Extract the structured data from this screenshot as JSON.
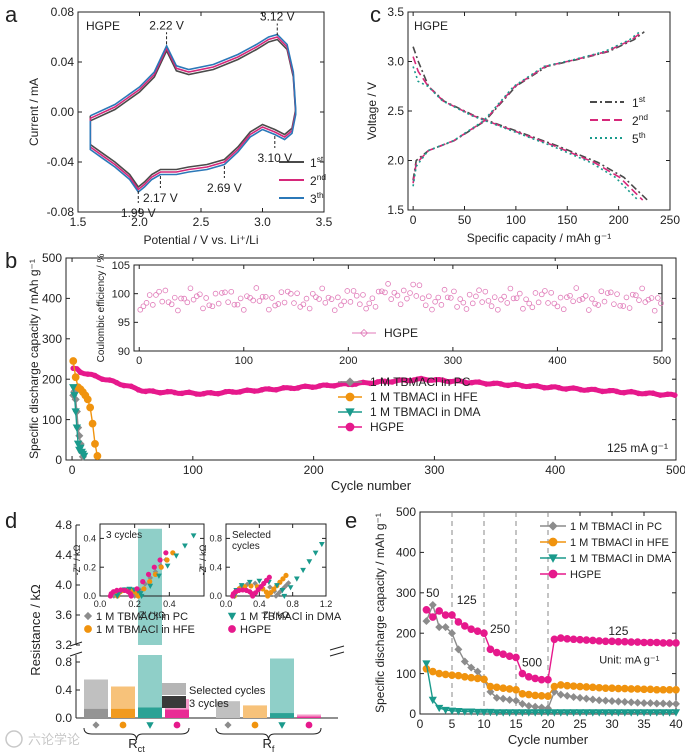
{
  "panels": {
    "a": {
      "letter": "a",
      "label": "HGPE",
      "xlabel": "Potential / V vs. Li⁺/Li",
      "ylabel": "Current / mA",
      "xlim": [
        1.5,
        3.5
      ],
      "ylim": [
        -0.08,
        0.08
      ],
      "xticks": [
        "1.5",
        "2.0",
        "2.5",
        "3.0",
        "3.5"
      ],
      "xtick_vals": [
        1.5,
        2.0,
        2.5,
        3.0,
        3.5
      ],
      "yticks": [
        "-0.08",
        "-0.04",
        "0.00",
        "0.04",
        "0.08"
      ],
      "ytick_vals": [
        -0.08,
        -0.04,
        0,
        0.04,
        0.08
      ],
      "peaks": [
        {
          "label": "2.22 V",
          "x": 2.22,
          "y": 0.051,
          "pos": "above"
        },
        {
          "label": "3.12 V",
          "x": 3.12,
          "y": 0.058,
          "pos": "above"
        },
        {
          "label": "1.99 V",
          "x": 1.99,
          "y": -0.06,
          "pos": "below"
        },
        {
          "label": "2.17 V",
          "x": 2.17,
          "y": -0.048,
          "pos": "below"
        },
        {
          "label": "2.69 V",
          "x": 2.69,
          "y": -0.04,
          "pos": "below"
        },
        {
          "label": "3.10 V",
          "x": 3.1,
          "y": -0.016,
          "pos": "below"
        }
      ],
      "series": [
        {
          "name": "1st",
          "base": "1",
          "sup": "st",
          "color": "#4a4a4a"
        },
        {
          "name": "2nd",
          "base": "2",
          "sup": "nd",
          "color": "#d6287a"
        },
        {
          "name": "3th",
          "base": "3",
          "sup": "th",
          "color": "#2b78b8"
        }
      ]
    },
    "c": {
      "letter": "c",
      "label": "HGPE",
      "xlabel": "Specific capacity / mAh g⁻¹",
      "ylabel": "Voltage / V",
      "xlim": [
        -5,
        250
      ],
      "ylim": [
        1.5,
        3.5
      ],
      "xticks": [
        "0",
        "50",
        "100",
        "150",
        "200",
        "250"
      ],
      "xtick_vals": [
        0,
        50,
        100,
        150,
        200,
        250
      ],
      "yticks": [
        "1.5",
        "2.0",
        "2.5",
        "3.0",
        "3.5"
      ],
      "ytick_vals": [
        1.5,
        2.0,
        2.5,
        3.0,
        3.5
      ],
      "series": [
        {
          "name": "1st",
          "base": "1",
          "sup": "st",
          "color": "#4a4a4a",
          "dash": "7,3,2,3"
        },
        {
          "name": "2nd",
          "base": "2",
          "sup": "nd",
          "color": "#d6287a",
          "dash": "8,4"
        },
        {
          "name": "5th",
          "base": "5",
          "sup": "th",
          "color": "#1a9a8c",
          "dash": "2,3"
        }
      ]
    },
    "b": {
      "letter": "b",
      "xlabel": "Cycle number",
      "ylabel": "Specific discharge capacity / mAh g⁻¹",
      "xlim": [
        -5,
        500
      ],
      "ylim": [
        0,
        500
      ],
      "xticks": [
        "0",
        "100",
        "200",
        "300",
        "400",
        "500"
      ],
      "xtick_vals": [
        0,
        100,
        200,
        300,
        400,
        500
      ],
      "yticks": [
        "0",
        "100",
        "200",
        "300",
        "400",
        "500"
      ],
      "ytick_vals": [
        0,
        100,
        200,
        300,
        400,
        500
      ],
      "rate": "125 mA g⁻¹",
      "inset": {
        "ylabel": "Coulombic efficiency / %",
        "xlim": [
          -5,
          500
        ],
        "ylim": [
          90,
          105
        ],
        "xticks": [
          "0",
          "100",
          "200",
          "300",
          "400",
          "500"
        ],
        "xtick_vals": [
          0,
          100,
          200,
          300,
          400,
          500
        ],
        "yticks": [
          "90",
          "95",
          "100",
          "105"
        ],
        "ytick_vals": [
          90,
          95,
          100,
          105
        ],
        "legend": "HGPE",
        "color": "#e07ab8"
      },
      "series": [
        {
          "name": "1 M TBMACl in PC",
          "color": "#8c8c8c",
          "marker": "diamond"
        },
        {
          "name": "1 M TBMACl in HFE",
          "color": "#f0930e",
          "marker": "circle"
        },
        {
          "name": "1 M TBMACl in DMA",
          "color": "#1a9a8c",
          "marker": "triangle"
        },
        {
          "name": "HGPE",
          "color": "#e6198c",
          "marker": "circle"
        }
      ]
    },
    "d": {
      "letter": "d",
      "ylabel": "Resistance / kΩ",
      "yticks_low": [
        "0.0",
        "0.4",
        "0.8"
      ],
      "ytick_low_vals": [
        0,
        0.4,
        0.8
      ],
      "yticks_high": [
        "3.2",
        "3.6",
        "4.0",
        "4.4",
        "4.8"
      ],
      "ytick_high_vals": [
        3.2,
        3.6,
        4.0,
        4.4,
        4.8
      ],
      "groups": [
        "Rct",
        "Rf"
      ],
      "group_base": [
        "R",
        "R"
      ],
      "group_sub": [
        "ct",
        "f"
      ],
      "bar_legend": [
        "Selected cycles",
        "3 cycles"
      ],
      "legend": [
        {
          "name": "1 M TBMACl in PC",
          "color": "#8c8c8c",
          "marker": "diamond"
        },
        {
          "name": "1 M TBMACl in HFE",
          "color": "#f0930e",
          "marker": "circle"
        },
        {
          "name": "1 M TBMACl in DMA",
          "color": "#1a9a8c",
          "marker": "triangle"
        },
        {
          "name": "HGPE",
          "color": "#e6198c",
          "marker": "circle"
        }
      ],
      "bars": {
        "Rct": {
          "selected": [
            0.55,
            0.45,
            4.75,
            0.27
          ],
          "three": [
            0.13,
            0.13,
            0.15,
            0.12
          ]
        },
        "Rf": {
          "selected": [
            0.24,
            0.18,
            0.85,
            0.05
          ],
          "three": [
            0.0,
            0.0,
            0.07,
            0.02
          ]
        }
      },
      "inset1": {
        "label": "3 cycles",
        "xlabel": "Z' / kΩ",
        "ylabel": "-Z'' / kΩ",
        "xticks": [
          "0.0",
          "0.2",
          "0.4"
        ],
        "xtick_vals": [
          0,
          0.2,
          0.4
        ],
        "yticks": [
          "0.0",
          "0.2",
          "0.4"
        ],
        "ytick_vals": [
          0,
          0.2,
          0.4
        ]
      },
      "inset2": {
        "label": "Selected cycles",
        "xlabel": "Z' / kΩ",
        "ylabel": "-Z'' / kΩ",
        "xticks": [
          "0.0",
          "0.4",
          "0.8",
          "1.2"
        ],
        "xtick_vals": [
          0,
          0.4,
          0.8,
          1.2
        ],
        "yticks": [
          "0.0",
          "0.4",
          "0.8"
        ],
        "ytick_vals": [
          0,
          0.4,
          0.8
        ]
      }
    },
    "e": {
      "letter": "e",
      "xlabel": "Cycle number",
      "ylabel": "Specific discharge capacity / mAh g⁻¹",
      "xlim": [
        0,
        40
      ],
      "ylim": [
        0,
        500
      ],
      "xticks": [
        "0",
        "5",
        "10",
        "15",
        "20",
        "25",
        "30",
        "35",
        "40"
      ],
      "xtick_vals": [
        0,
        5,
        10,
        15,
        20,
        25,
        30,
        35,
        40
      ],
      "yticks": [
        "0",
        "100",
        "200",
        "300",
        "400",
        "500"
      ],
      "ytick_vals": [
        0,
        100,
        200,
        300,
        400,
        500
      ],
      "rates": [
        {
          "label": "50",
          "x": 2.0,
          "y": 290
        },
        {
          "label": "125",
          "x": 7.3,
          "y": 272
        },
        {
          "label": "250",
          "x": 12.5,
          "y": 200
        },
        {
          "label": "500",
          "x": 17.5,
          "y": 118
        },
        {
          "label": "125",
          "x": 31,
          "y": 195
        }
      ],
      "unit": "Unit: mA g⁻¹",
      "dividers": [
        5,
        10,
        15,
        20
      ],
      "series": [
        {
          "name": "1 M TBMACl in PC",
          "color": "#8c8c8c",
          "marker": "diamond",
          "values": [
            230,
            270,
            215,
            215,
            200,
            160,
            130,
            115,
            105,
            85,
            55,
            40,
            38,
            35,
            33,
            25,
            20,
            18,
            16,
            14,
            55,
            48,
            45,
            42,
            40,
            38,
            36,
            34,
            33,
            32,
            31,
            30,
            29,
            28,
            27,
            27,
            26,
            26,
            25,
            25
          ]
        },
        {
          "name": "1 M TBMACl in HFE",
          "color": "#f0930e",
          "marker": "circle",
          "values": [
            112,
            105,
            100,
            98,
            96,
            95,
            92,
            90,
            88,
            86,
            68,
            66,
            64,
            62,
            60,
            50,
            48,
            46,
            45,
            44,
            68,
            72,
            70,
            69,
            68,
            67,
            66,
            65,
            64,
            64,
            63,
            63,
            62,
            62,
            61,
            61,
            60,
            60,
            60,
            60
          ]
        },
        {
          "name": "1 M TBMACl in DMA",
          "color": "#1a9a8c",
          "marker": "triangle",
          "values": [
            125,
            35,
            15,
            10,
            8,
            7,
            6,
            6,
            5,
            5,
            5,
            4,
            4,
            4,
            4,
            4,
            4,
            4,
            4,
            4,
            4,
            4,
            4,
            4,
            4,
            4,
            4,
            4,
            4,
            4,
            4,
            4,
            4,
            4,
            4,
            4,
            4,
            4,
            4,
            4
          ]
        },
        {
          "name": "HGPE",
          "color": "#e6198c",
          "marker": "circle",
          "values": [
            258,
            240,
            255,
            245,
            245,
            228,
            218,
            210,
            205,
            200,
            160,
            152,
            148,
            143,
            140,
            100,
            92,
            88,
            85,
            85,
            185,
            188,
            186,
            185,
            184,
            183,
            182,
            181,
            180,
            180,
            179,
            179,
            178,
            178,
            177,
            177,
            177,
            176,
            176,
            176
          ]
        }
      ]
    }
  },
  "watermark": "六论学论"
}
